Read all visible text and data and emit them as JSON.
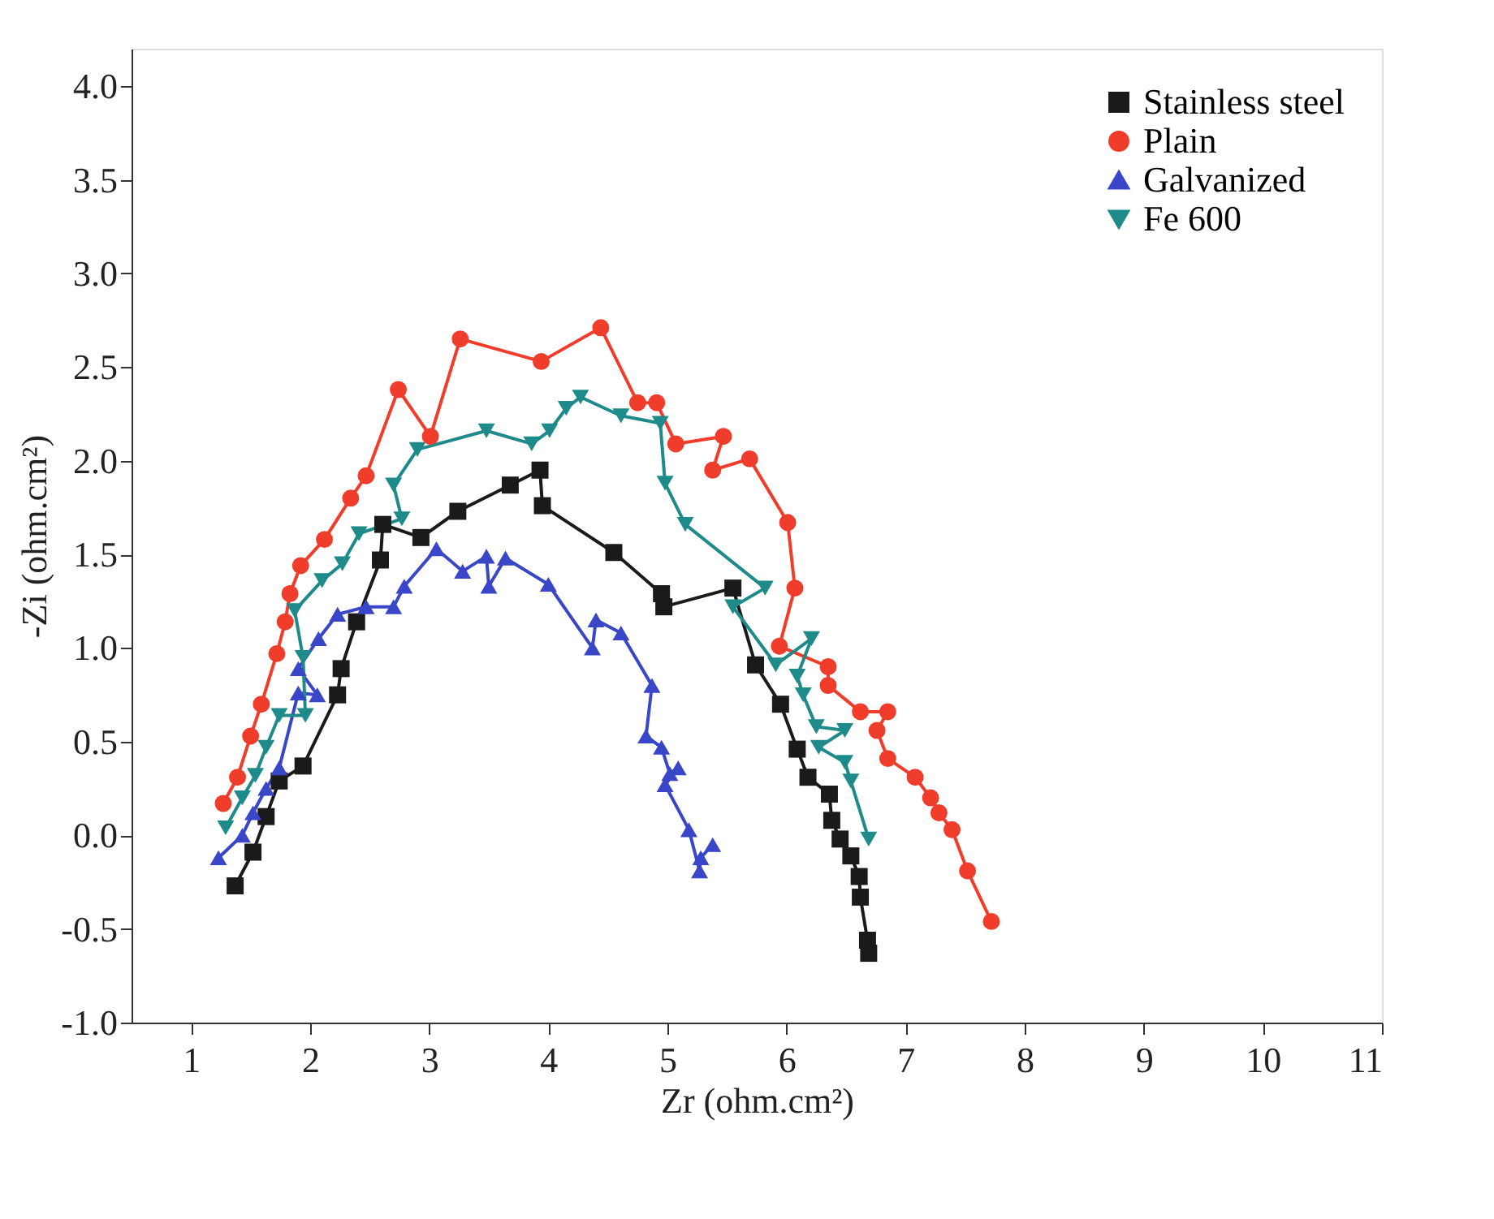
{
  "chart_data": {
    "type": "line",
    "xlabel": "Zr (ohm.cm²)",
    "ylabel": "-Zi (ohm.cm²)",
    "xlim": [
      0.5,
      11
    ],
    "ylim": [
      -1.0,
      4.2
    ],
    "xticks": [
      1,
      2,
      3,
      4,
      5,
      6,
      7,
      8,
      9,
      10,
      11
    ],
    "yticks": [
      {
        "value": -1,
        "label": "-1.0"
      },
      {
        "value": -0.5,
        "label": "-0.5"
      },
      {
        "value": 0,
        "label": "0.0"
      },
      {
        "value": 0.5,
        "label": "0.5"
      },
      {
        "value": 1,
        "label": "1.0"
      },
      {
        "value": 1.5,
        "label": "1.5"
      },
      {
        "value": 2,
        "label": "2.0"
      },
      {
        "value": 2.5,
        "label": "2.5"
      },
      {
        "value": 3,
        "label": "3.0"
      },
      {
        "value": 3.5,
        "label": "3.5"
      },
      {
        "value": 4,
        "label": "4.0"
      }
    ],
    "grid": false,
    "legend": "top right",
    "line_style": "solid",
    "series": [
      {
        "name": "Stainless steel",
        "color": "#1a1a1a",
        "marker": "square",
        "x": [
          1.37,
          1.52,
          1.63,
          1.74,
          1.94,
          2.23,
          2.26,
          2.39,
          2.59,
          2.61,
          2.93,
          3.24,
          3.68,
          3.93,
          3.95,
          4.55,
          4.95,
          4.97,
          5.55,
          5.74,
          5.95,
          6.09,
          6.18,
          6.36,
          6.38,
          6.45,
          6.54,
          6.61,
          6.62,
          6.68,
          6.69
        ],
        "values": [
          -0.27,
          -0.09,
          0.1,
          0.29,
          0.37,
          0.75,
          0.89,
          1.14,
          1.47,
          1.66,
          1.59,
          1.73,
          1.87,
          1.95,
          1.76,
          1.51,
          1.29,
          1.22,
          1.32,
          0.91,
          0.7,
          0.46,
          0.31,
          0.22,
          0.08,
          -0.02,
          -0.11,
          -0.22,
          -0.33,
          -0.56,
          -0.63
        ]
      },
      {
        "name": "Plain",
        "color": "#f03c2a",
        "marker": "circle",
        "x": [
          1.27,
          1.39,
          1.5,
          1.59,
          1.72,
          1.79,
          1.83,
          1.92,
          2.12,
          2.34,
          2.47,
          2.74,
          3.01,
          3.26,
          3.94,
          4.44,
          4.75,
          4.91,
          5.07,
          5.47,
          5.38,
          5.69,
          6.01,
          6.07,
          5.94,
          6.35,
          6.35,
          6.62,
          6.85,
          6.76,
          6.85,
          7.08,
          7.21,
          7.28,
          7.39,
          7.52,
          7.72
        ],
        "values": [
          0.17,
          0.31,
          0.53,
          0.7,
          0.97,
          1.14,
          1.29,
          1.44,
          1.58,
          1.8,
          1.92,
          2.38,
          2.13,
          2.65,
          2.53,
          2.71,
          2.31,
          2.31,
          2.09,
          2.13,
          1.95,
          2.01,
          1.67,
          1.32,
          1.01,
          0.9,
          0.8,
          0.66,
          0.66,
          0.56,
          0.41,
          0.31,
          0.2,
          0.12,
          0.03,
          -0.19,
          -0.46
        ]
      },
      {
        "name": "Galvanized",
        "color": "#3a46c8",
        "marker": "triangle",
        "x": [
          1.23,
          1.43,
          1.52,
          1.63,
          1.74,
          1.9,
          2.06,
          1.9,
          2.07,
          2.23,
          2.47,
          2.7,
          2.79,
          3.06,
          3.28,
          3.48,
          3.5,
          3.64,
          4.0,
          4.37,
          4.4,
          4.61,
          4.87,
          4.82,
          4.95,
          5.02,
          5.09,
          4.98,
          5.18,
          5.27,
          5.28,
          5.38
        ],
        "values": [
          -0.12,
          0.0,
          0.12,
          0.25,
          0.36,
          0.76,
          0.75,
          0.89,
          1.05,
          1.18,
          1.22,
          1.22,
          1.33,
          1.53,
          1.41,
          1.49,
          1.33,
          1.48,
          1.34,
          1.0,
          1.15,
          1.08,
          0.8,
          0.53,
          0.47,
          0.33,
          0.36,
          0.27,
          0.03,
          -0.19,
          -0.12,
          -0.05
        ]
      },
      {
        "name": "Fe 600",
        "color": "#1f8a8a",
        "marker": "triangle-down",
        "x": [
          1.29,
          1.43,
          1.54,
          1.63,
          1.74,
          1.96,
          1.94,
          1.87,
          2.1,
          2.27,
          2.41,
          2.77,
          2.7,
          2.9,
          3.48,
          3.86,
          4.01,
          4.15,
          4.27,
          4.61,
          4.94,
          4.98,
          5.15,
          5.82,
          5.55,
          5.91,
          6.21,
          6.09,
          6.14,
          6.25,
          6.49,
          6.27,
          6.49,
          6.54,
          6.69
        ],
        "values": [
          0.04,
          0.2,
          0.32,
          0.47,
          0.64,
          0.64,
          0.95,
          1.2,
          1.36,
          1.45,
          1.61,
          1.69,
          1.87,
          2.06,
          2.16,
          2.09,
          2.16,
          2.28,
          2.34,
          2.24,
          2.2,
          1.88,
          1.66,
          1.32,
          1.22,
          0.91,
          1.05,
          0.85,
          0.75,
          0.58,
          0.56,
          0.47,
          0.39,
          0.29,
          -0.02
        ]
      }
    ]
  }
}
